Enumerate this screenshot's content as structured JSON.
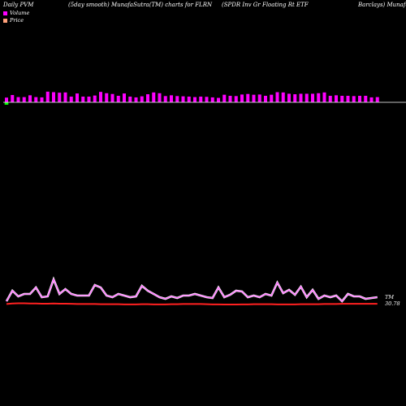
{
  "header": {
    "left": "Daily PVM",
    "center": "(5day smooth) MunafaSutra(TM) charts for FLRN",
    "right1": "(SPDR Inv   Gr Floating Rt ETF",
    "right2": "Barclays) MunafaSu"
  },
  "legend": {
    "volume_label": "Volume",
    "price_label": "Price",
    "volume_color": "#ff00ff",
    "price_color": "#ffa07a"
  },
  "end_labels": {
    "line_label": "TM",
    "price_label": "30.78"
  },
  "colors": {
    "volume_bar": "#ff00ff",
    "volume_bar_outline": "#000000",
    "up_marker": "#00ff00",
    "baseline": "#ffffff",
    "pvm_line": "#ff66ff",
    "pvm_line_glow": "#ffffff",
    "price_line": "#ff2020"
  },
  "chart_data": {
    "type": "bar+line",
    "volume": [
      1.9,
      2.9,
      2.1,
      2.1,
      2.8,
      2.1,
      2.0,
      4.2,
      4.0,
      3.8,
      3.9,
      2.3,
      3.5,
      2.3,
      2.3,
      2.7,
      4.1,
      3.6,
      3.3,
      2.6,
      3.5,
      2.3,
      2.0,
      2.4,
      3.2,
      3.9,
      3.6,
      2.5,
      2.8,
      2.5,
      2.4,
      2.3,
      2.1,
      2.3,
      2.2,
      2.0,
      1.8,
      3.0,
      2.6,
      2.5,
      3.1,
      3.3,
      3.0,
      3.1,
      2.6,
      3.0,
      4.0,
      3.9,
      3.4,
      3.2,
      3.4,
      3.4,
      3.4,
      3.6,
      3.9,
      2.6,
      2.8,
      2.6,
      2.6,
      2.5,
      2.6,
      2.6,
      2.0,
      2.1
    ],
    "pvm": [
      5,
      18,
      11,
      14,
      14,
      22,
      10,
      11,
      32,
      14,
      20,
      14,
      12,
      12,
      12,
      25,
      22,
      12,
      10,
      14,
      12,
      10,
      11,
      24,
      18,
      14,
      10,
      8,
      11,
      9,
      12,
      12,
      14,
      12,
      10,
      9,
      22,
      10,
      13,
      18,
      17,
      10,
      12,
      10,
      14,
      12,
      28,
      15,
      19,
      13,
      23,
      10,
      19,
      8,
      12,
      10,
      12,
      5,
      14,
      11,
      11,
      8,
      9,
      10
    ],
    "price": [
      3.0,
      3.3,
      3.4,
      3.4,
      3.3,
      3.3,
      3.2,
      3.2,
      3.3,
      3.2,
      3.2,
      3.1,
      3.0,
      3.0,
      3.0,
      3.0,
      2.9,
      2.9,
      2.9,
      2.9,
      2.8,
      2.8,
      2.8,
      2.9,
      2.9,
      2.8,
      2.8,
      2.8,
      2.9,
      2.9,
      3.0,
      3.0,
      3.0,
      3.0,
      2.9,
      2.8,
      2.8,
      2.7,
      2.7,
      2.7,
      2.8,
      2.8,
      2.9,
      2.9,
      2.9,
      2.9,
      2.8,
      2.8,
      2.8,
      2.8,
      2.9,
      2.9,
      2.9,
      2.9,
      3.0,
      3.0,
      3.0,
      3.1,
      3.1,
      3.1,
      3.1,
      3.1,
      3.1,
      3.1
    ],
    "up_marker_index": 0
  }
}
